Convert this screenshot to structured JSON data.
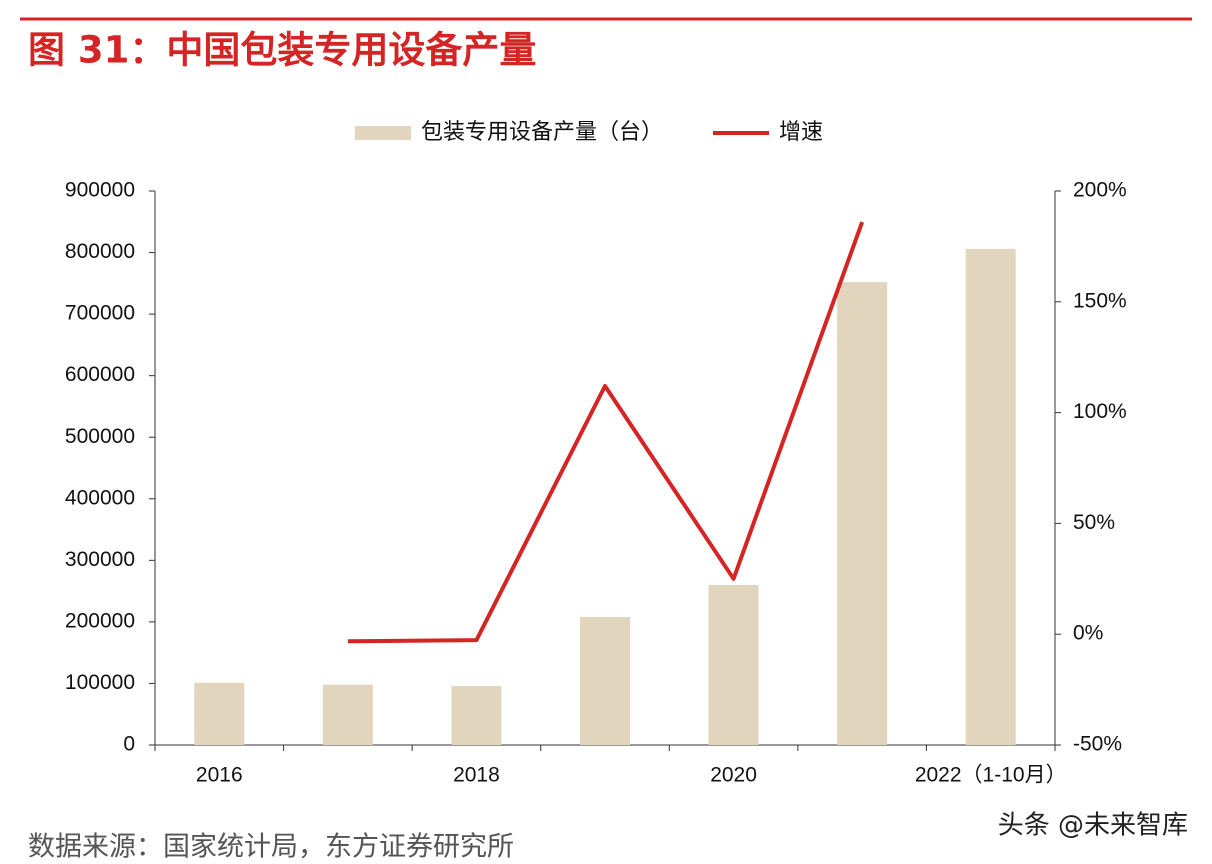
{
  "chart_data": {
    "type": "bar-line",
    "title": "图 31：中国包装专用设备产量",
    "categories": [
      "2016",
      null,
      "2018",
      null,
      "2020",
      null,
      "2022（1-10月）"
    ],
    "series": [
      {
        "name": "包装专用设备产量（台）",
        "type": "bar",
        "color": "#e1d5bd",
        "values": [
          101000,
          98000,
          96000,
          208000,
          260000,
          752000,
          806000
        ]
      },
      {
        "name": "增速",
        "type": "line",
        "axis": "y2",
        "color": "#d42424",
        "values": [
          null,
          -3.2,
          -2.7,
          112,
          25,
          186,
          null
        ]
      }
    ],
    "ylim": [
      0,
      900000
    ],
    "yticks": [
      0,
      100000,
      200000,
      300000,
      400000,
      500000,
      600000,
      700000,
      800000,
      900000
    ],
    "y2lim": [
      -50,
      200
    ],
    "y2ticks": [
      {
        "value": -50,
        "label": "-50%"
      },
      {
        "value": 0,
        "label": "0%"
      },
      {
        "value": 50,
        "label": "50%"
      },
      {
        "value": 100,
        "label": "100%"
      },
      {
        "value": 150,
        "label": "150%"
      },
      {
        "value": 200,
        "label": "200%"
      }
    ],
    "legend": "top",
    "source": "数据来源：国家统计局，东方证券研究所",
    "watermark": "头条 @未来智库"
  }
}
